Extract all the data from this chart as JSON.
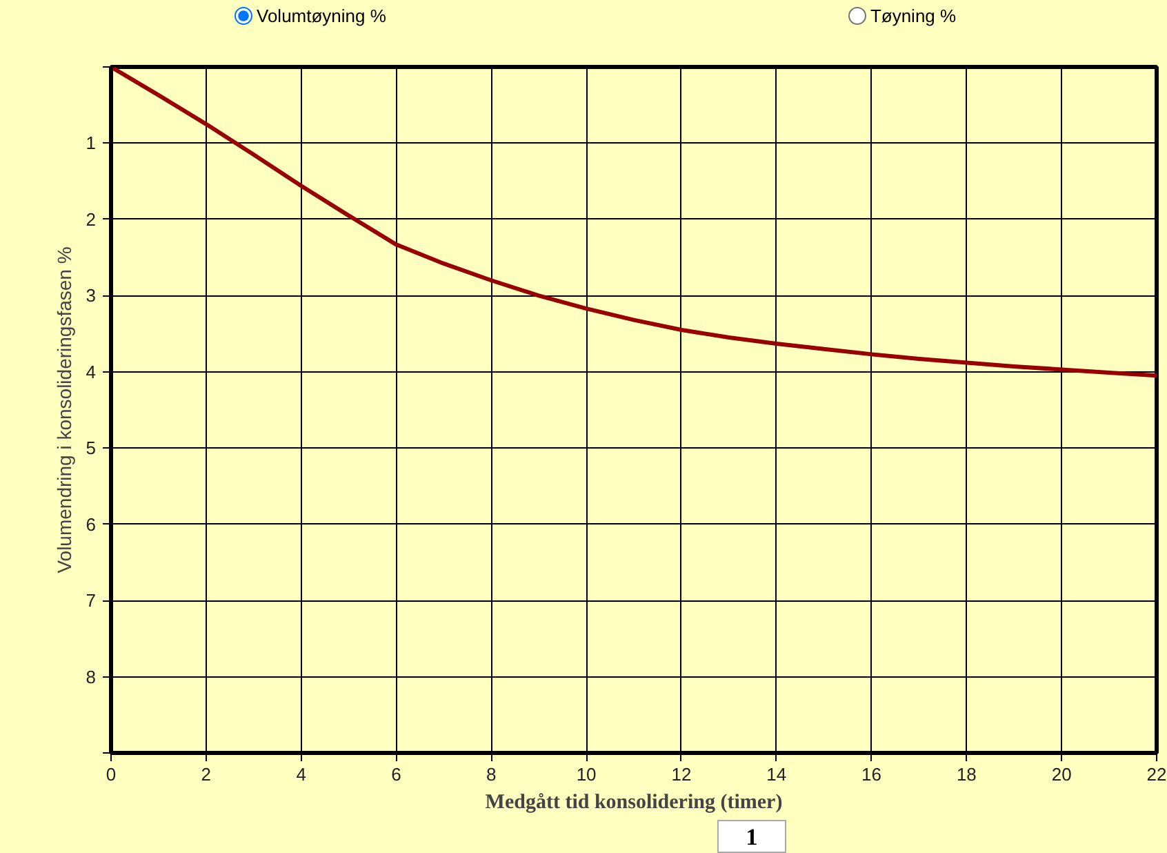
{
  "chart_data": {
    "type": "line",
    "xlabel": "Medgått tid konsolidering (timer)",
    "ylabel": "Volumendring i konsolideringsfasen %",
    "x": [
      0,
      1,
      2,
      3,
      4,
      5,
      6,
      7,
      8,
      9,
      10,
      11,
      12,
      13,
      14,
      15,
      16,
      17,
      18,
      19,
      20,
      21,
      22
    ],
    "series": [
      {
        "color": "#990000",
        "values": [
          0,
          0.37,
          0.75,
          1.15,
          1.56,
          1.95,
          2.33,
          2.58,
          2.8,
          3.0,
          3.17,
          3.32,
          3.45,
          3.55,
          3.63,
          3.7,
          3.77,
          3.83,
          3.88,
          3.93,
          3.97,
          4.01,
          4.05
        ]
      }
    ],
    "xlim": [
      0,
      22
    ],
    "ylim": [
      9,
      0
    ],
    "xticks": [
      0,
      2,
      4,
      6,
      8,
      10,
      12,
      14,
      16,
      18,
      20,
      22
    ],
    "yticks": [
      {
        "value": 0,
        "label": null
      },
      1,
      2,
      3,
      4,
      5,
      6,
      7,
      8,
      {
        "value": 9,
        "label": null
      }
    ],
    "grid": true,
    "marker": "none",
    "line_style": "solid",
    "annotations": [
      "Volumtøyning %",
      "Tøyning %",
      "1"
    ]
  }
}
